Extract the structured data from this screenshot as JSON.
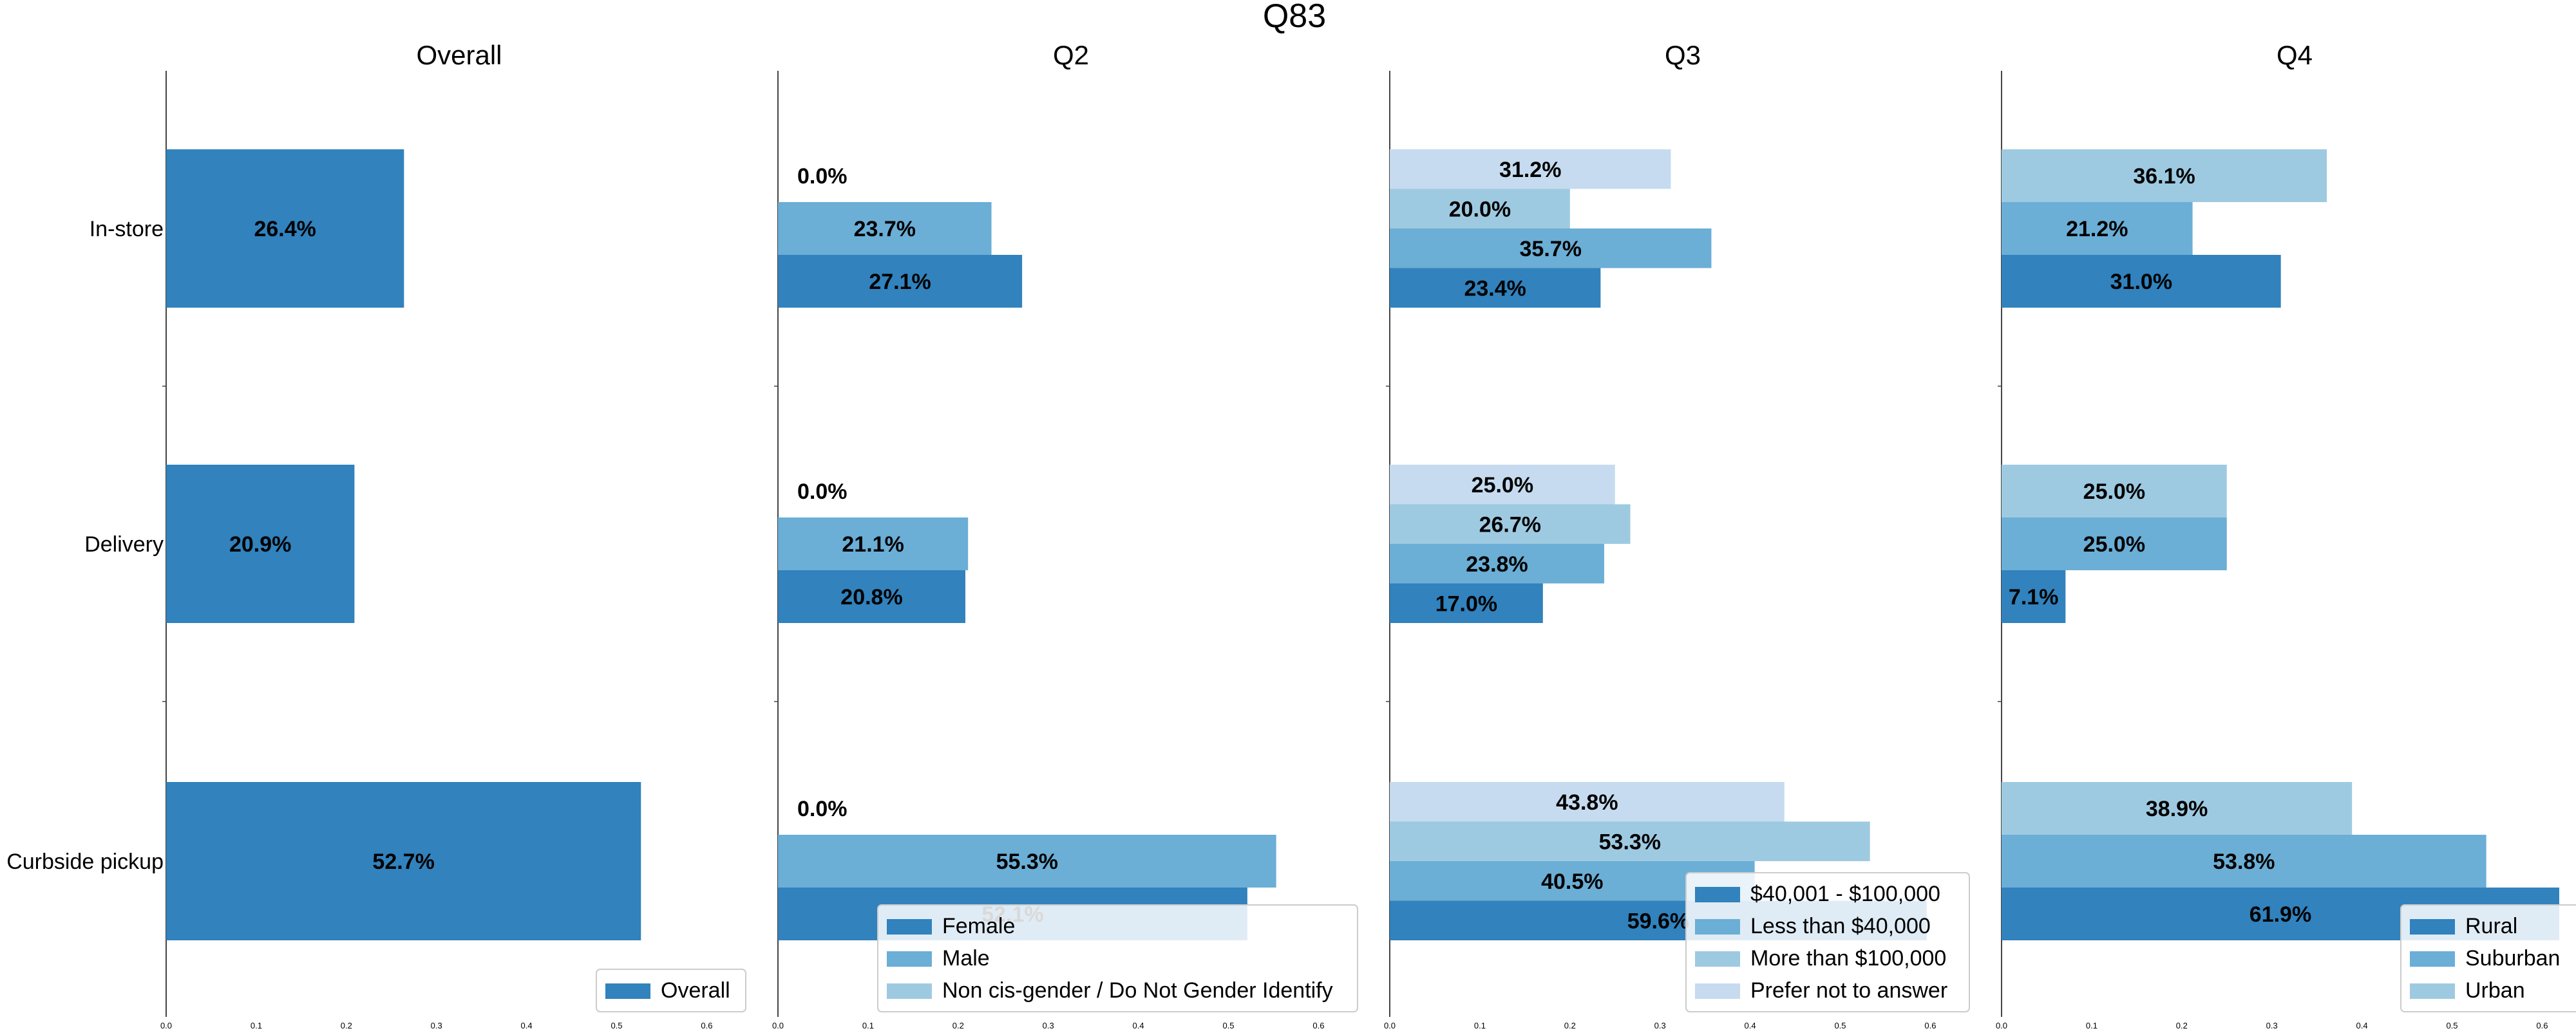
{
  "chart_data": {
    "type": "bar",
    "orientation": "horizontal",
    "title": "Q83",
    "categories": [
      "In-store",
      "Delivery",
      "Curbside pickup"
    ],
    "xlim": [
      0,
      0.6
    ],
    "xticks": [
      "0.0",
      "0.1",
      "0.2",
      "0.3",
      "0.4",
      "0.5",
      "0.6"
    ],
    "colors": [
      "#3182bd",
      "#6baed6",
      "#9ecae1",
      "#c6dbef"
    ],
    "panels": [
      {
        "title": "Overall",
        "legend_position": "lower-right",
        "series": [
          {
            "name": "Overall",
            "values": [
              0.264,
              0.209,
              0.527
            ],
            "labels": [
              "26.4%",
              "20.9%",
              "52.7%"
            ]
          }
        ]
      },
      {
        "title": "Q2",
        "legend_position": "lower-right",
        "series": [
          {
            "name": "Female",
            "values": [
              0.271,
              0.208,
              0.521
            ],
            "labels": [
              "27.1%",
              "20.8%",
              "52.1%"
            ]
          },
          {
            "name": "Male",
            "values": [
              0.237,
              0.211,
              0.553
            ],
            "labels": [
              "23.7%",
              "21.1%",
              "55.3%"
            ]
          },
          {
            "name": "Non cis-gender / Do Not Gender Identify",
            "values": [
              0.0,
              0.0,
              0.0
            ],
            "labels": [
              "0.0%",
              "0.0%",
              "0.0%"
            ]
          }
        ]
      },
      {
        "title": "Q3",
        "legend_position": "lower-right",
        "series": [
          {
            "name": "$40,001-$100,000",
            "legend_label": "$40,001 - $100,000",
            "values": [
              0.234,
              0.17,
              0.596
            ],
            "labels": [
              "23.4%",
              "17.0%",
              "59.6%"
            ]
          },
          {
            "name": "Less than $40,000",
            "values": [
              0.357,
              0.238,
              0.405
            ],
            "labels": [
              "35.7%",
              "23.8%",
              "40.5%"
            ]
          },
          {
            "name": "More than $100,000",
            "values": [
              0.2,
              0.267,
              0.533
            ],
            "labels": [
              "20.0%",
              "26.7%",
              "53.3%"
            ]
          },
          {
            "name": "Prefer not to answer",
            "values": [
              0.312,
              0.25,
              0.438
            ],
            "labels": [
              "31.2%",
              "25.0%",
              "43.8%"
            ]
          }
        ]
      },
      {
        "title": "Q4",
        "legend_position": "lower-right",
        "series": [
          {
            "name": "Rural",
            "values": [
              0.31,
              0.071,
              0.619
            ],
            "labels": [
              "31.0%",
              "7.1%",
              "61.9%"
            ]
          },
          {
            "name": "Suburban",
            "values": [
              0.212,
              0.25,
              0.538
            ],
            "labels": [
              "21.2%",
              "25.0%",
              "53.8%"
            ]
          },
          {
            "name": "Urban",
            "values": [
              0.361,
              0.25,
              0.389
            ],
            "labels": [
              "36.1%",
              "25.0%",
              "38.9%"
            ]
          }
        ]
      }
    ]
  }
}
